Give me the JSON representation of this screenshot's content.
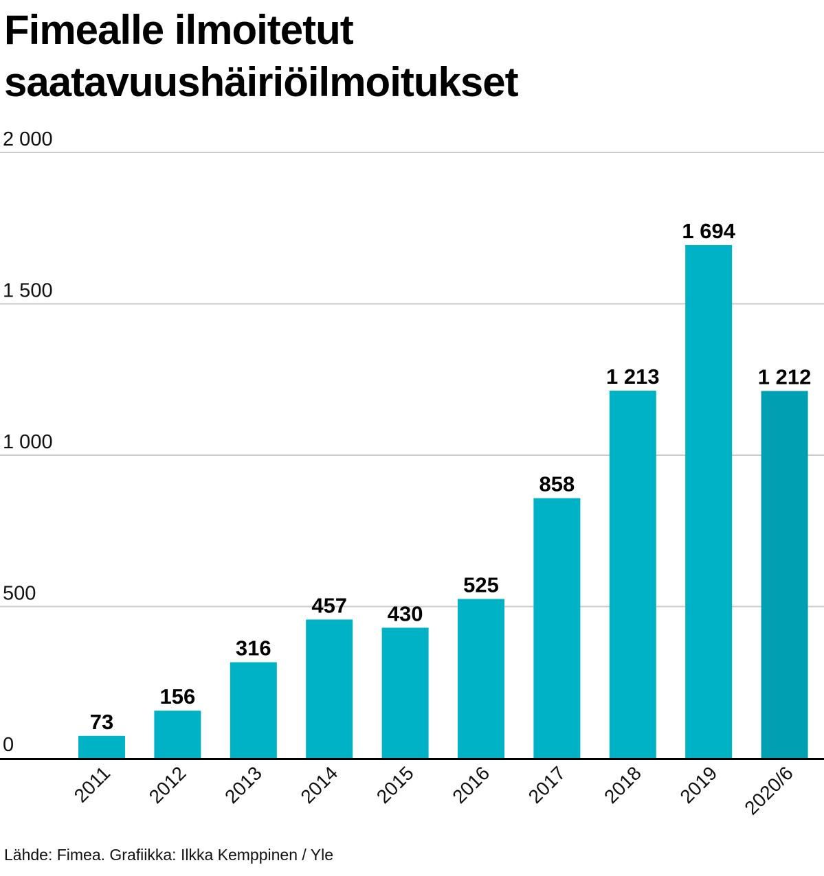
{
  "title_lines": [
    "Fimealle ilmoitetut",
    "saatavuushäiriöilmoitukset"
  ],
  "source": "Lähde: Fimea. Grafiikka: Ilkka Kemppinen / Yle",
  "colors": {
    "bar": "#00b2c6",
    "bar_highlight": "#00a0b2",
    "grid": "#cccccc",
    "axis": "#000000"
  },
  "chart_data": {
    "type": "bar",
    "title": "Fimealle ilmoitetut saatavuushäiriöilmoitukset",
    "categories": [
      "2011",
      "2012",
      "2013",
      "2014",
      "2015",
      "2016",
      "2017",
      "2018",
      "2019",
      "2020/6"
    ],
    "values": [
      73,
      156,
      316,
      457,
      430,
      525,
      858,
      1213,
      1694,
      1212
    ],
    "value_labels": [
      "73",
      "156",
      "316",
      "457",
      "430",
      "525",
      "858",
      "1 213",
      "1 694",
      "1 212"
    ],
    "highlight_index": 9,
    "ylim": [
      0,
      2000
    ],
    "yticks": [
      0,
      500,
      1000,
      1500,
      2000
    ],
    "ytick_labels": [
      "0",
      "500",
      "1 000",
      "1 500",
      "2 000"
    ],
    "grid": true,
    "xlabel": "",
    "ylabel": ""
  }
}
